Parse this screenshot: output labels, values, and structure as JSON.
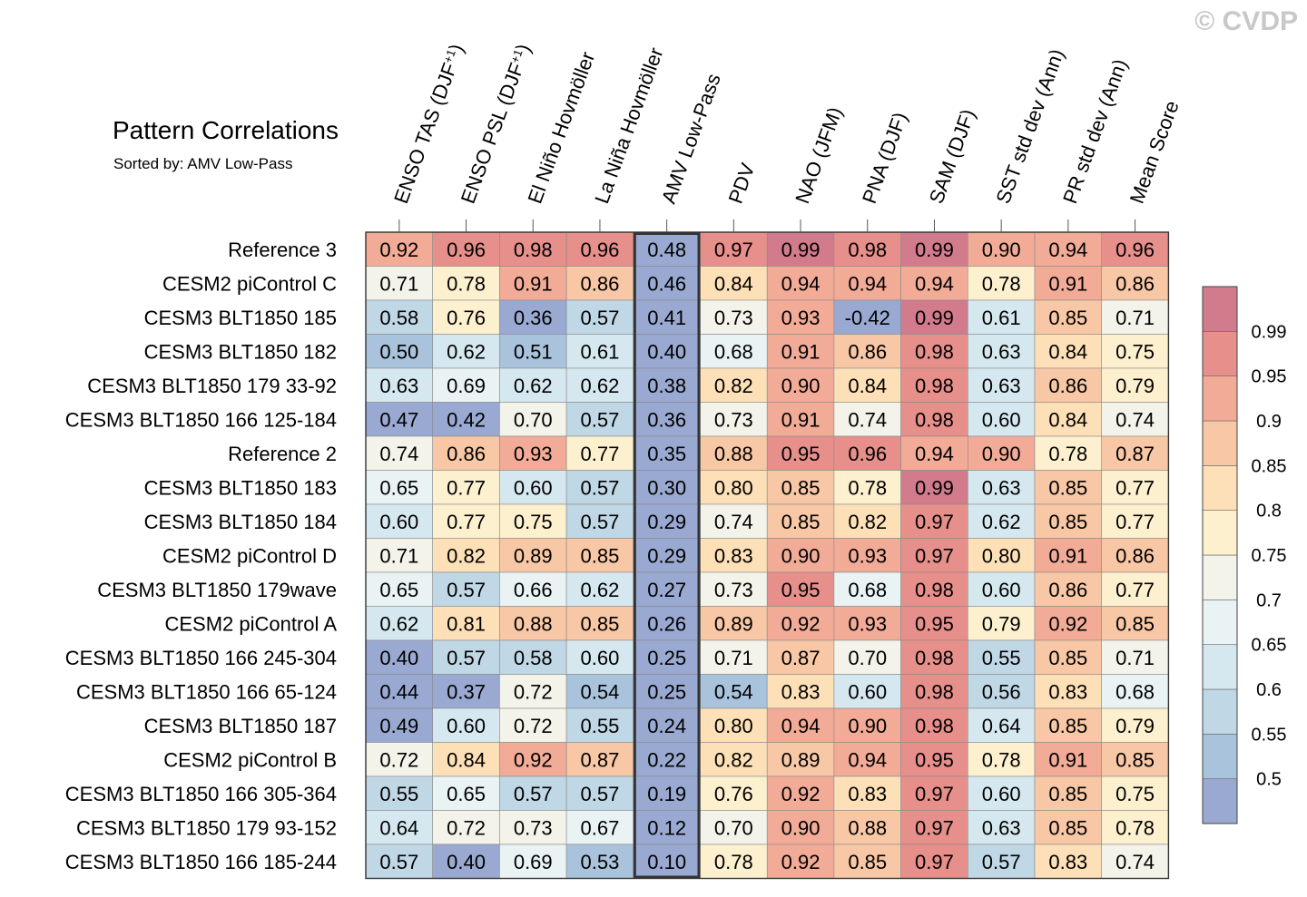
{
  "watermark": "© CVDP",
  "chart_data": {
    "type": "heatmap",
    "title": "Pattern Correlations",
    "subtitle": "Sorted by: AMV Low-Pass",
    "sorted_column": "AMV Low-Pass",
    "columns": [
      "ENSO TAS (DJF+1)",
      "ENSO PSL (DJF+1)",
      "El Niño Hovmöller",
      "La Niña Hovmöller",
      "AMV Low-Pass",
      "PDV",
      "NAO (JFM)",
      "PNA (DJF)",
      "SAM (DJF)",
      "SST std dev (Ann)",
      "PR std dev (Ann)",
      "Mean Score"
    ],
    "rows": [
      "Reference 3",
      "CESM2 piControl C",
      "CESM3 BLT1850 185",
      "CESM3 BLT1850 182",
      "CESM3 BLT1850 179 33-92",
      "CESM3 BLT1850 166 125-184",
      "Reference 2",
      "CESM3 BLT1850 183",
      "CESM3 BLT1850 184",
      "CESM2 piControl D",
      "CESM3 BLT1850 179wave",
      "CESM2 piControl A",
      "CESM3 BLT1850 166 245-304",
      "CESM3 BLT1850 166 65-124",
      "CESM3 BLT1850 187",
      "CESM2 piControl B",
      "CESM3 BLT1850 166 305-364",
      "CESM3 BLT1850 179 93-152",
      "CESM3 BLT1850 166 185-244"
    ],
    "values": [
      [
        "0.92",
        "0.96",
        "0.98",
        "0.96",
        "0.48",
        "0.97",
        "0.99",
        "0.98",
        "0.99",
        "0.90",
        "0.94",
        "0.96"
      ],
      [
        "0.71",
        "0.78",
        "0.91",
        "0.86",
        "0.46",
        "0.84",
        "0.94",
        "0.94",
        "0.94",
        "0.78",
        "0.91",
        "0.86"
      ],
      [
        "0.58",
        "0.76",
        "0.36",
        "0.57",
        "0.41",
        "0.73",
        "0.93",
        "-0.42",
        "0.99",
        "0.61",
        "0.85",
        "0.71"
      ],
      [
        "0.50",
        "0.62",
        "0.51",
        "0.61",
        "0.40",
        "0.68",
        "0.91",
        "0.86",
        "0.98",
        "0.63",
        "0.84",
        "0.75"
      ],
      [
        "0.63",
        "0.69",
        "0.62",
        "0.62",
        "0.38",
        "0.82",
        "0.90",
        "0.84",
        "0.98",
        "0.63",
        "0.86",
        "0.79"
      ],
      [
        "0.47",
        "0.42",
        "0.70",
        "0.57",
        "0.36",
        "0.73",
        "0.91",
        "0.74",
        "0.98",
        "0.60",
        "0.84",
        "0.74"
      ],
      [
        "0.74",
        "0.86",
        "0.93",
        "0.77",
        "0.35",
        "0.88",
        "0.95",
        "0.96",
        "0.94",
        "0.90",
        "0.78",
        "0.87"
      ],
      [
        "0.65",
        "0.77",
        "0.60",
        "0.57",
        "0.30",
        "0.80",
        "0.85",
        "0.78",
        "0.99",
        "0.63",
        "0.85",
        "0.77"
      ],
      [
        "0.60",
        "0.77",
        "0.75",
        "0.57",
        "0.29",
        "0.74",
        "0.85",
        "0.82",
        "0.97",
        "0.62",
        "0.85",
        "0.77"
      ],
      [
        "0.71",
        "0.82",
        "0.89",
        "0.85",
        "0.29",
        "0.83",
        "0.90",
        "0.93",
        "0.97",
        "0.80",
        "0.91",
        "0.86"
      ],
      [
        "0.65",
        "0.57",
        "0.66",
        "0.62",
        "0.27",
        "0.73",
        "0.95",
        "0.68",
        "0.98",
        "0.60",
        "0.86",
        "0.77"
      ],
      [
        "0.62",
        "0.81",
        "0.88",
        "0.85",
        "0.26",
        "0.89",
        "0.92",
        "0.93",
        "0.95",
        "0.79",
        "0.92",
        "0.85"
      ],
      [
        "0.40",
        "0.57",
        "0.58",
        "0.60",
        "0.25",
        "0.71",
        "0.87",
        "0.70",
        "0.98",
        "0.55",
        "0.85",
        "0.71"
      ],
      [
        "0.44",
        "0.37",
        "0.72",
        "0.54",
        "0.25",
        "0.54",
        "0.83",
        "0.60",
        "0.98",
        "0.56",
        "0.83",
        "0.68"
      ],
      [
        "0.49",
        "0.60",
        "0.72",
        "0.55",
        "0.24",
        "0.80",
        "0.94",
        "0.90",
        "0.98",
        "0.64",
        "0.85",
        "0.79"
      ],
      [
        "0.72",
        "0.84",
        "0.92",
        "0.87",
        "0.22",
        "0.82",
        "0.89",
        "0.94",
        "0.95",
        "0.78",
        "0.91",
        "0.85"
      ],
      [
        "0.55",
        "0.65",
        "0.57",
        "0.57",
        "0.19",
        "0.76",
        "0.92",
        "0.83",
        "0.97",
        "0.60",
        "0.85",
        "0.75"
      ],
      [
        "0.64",
        "0.72",
        "0.73",
        "0.67",
        "0.12",
        "0.70",
        "0.90",
        "0.88",
        "0.97",
        "0.63",
        "0.85",
        "0.78"
      ],
      [
        "0.57",
        "0.40",
        "0.69",
        "0.53",
        "0.10",
        "0.78",
        "0.92",
        "0.85",
        "0.97",
        "0.57",
        "0.83",
        "0.74"
      ]
    ],
    "colorbar": {
      "levels": [
        0.5,
        0.55,
        0.6,
        0.65,
        0.7,
        0.75,
        0.8,
        0.85,
        0.9,
        0.95,
        0.99
      ],
      "labels": [
        "0.5",
        "0.55",
        "0.6",
        "0.65",
        "0.7",
        "0.75",
        "0.8",
        "0.85",
        "0.9",
        "0.95",
        "0.99"
      ],
      "colors": [
        "#99a9d1",
        "#aac3dc",
        "#c0d7e6",
        "#d6e8ef",
        "#e9f3f3",
        "#f3f3ea",
        "#fdf0cf",
        "#fde0b7",
        "#f8c7a5",
        "#f2ab97",
        "#e68f8b",
        "#d27b8c"
      ]
    }
  }
}
